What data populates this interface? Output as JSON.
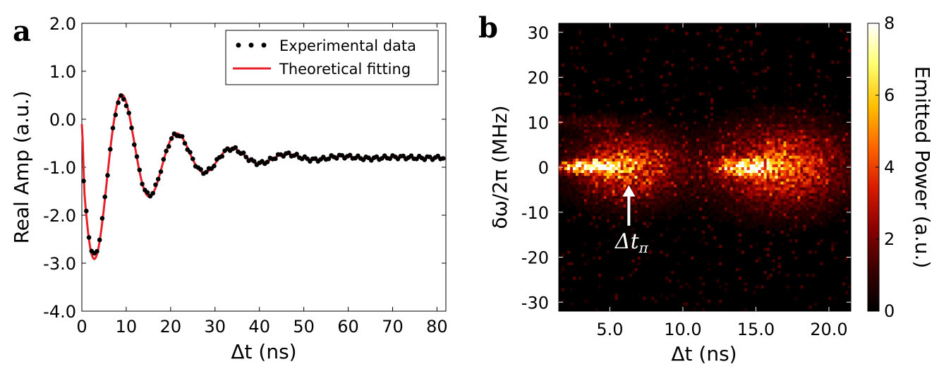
{
  "chart_data": [
    {
      "panel": "a",
      "type": "line",
      "xlabel": "Δt (ns)",
      "ylabel": "Real Amp (a.u.)",
      "xlim": [
        0,
        82
      ],
      "ylim": [
        -4.0,
        2.0
      ],
      "xticks": [
        0,
        10,
        20,
        30,
        40,
        50,
        60,
        70,
        80
      ],
      "xtick_labels": [
        "0",
        "10",
        "20",
        "30",
        "40",
        "50",
        "60",
        "70",
        "80"
      ],
      "yticks": [
        2.0,
        1.0,
        0.0,
        -1.0,
        -2.0,
        -3.0,
        -4.0
      ],
      "ytick_labels": [
        "2.0",
        "1.0",
        "0.0",
        "-1.0",
        "-2.0",
        "-3.0",
        "-4.0"
      ],
      "legend": "top-right",
      "grid": false,
      "series": [
        {
          "name": "Experimental data",
          "style": "dots",
          "color": "#000000",
          "model": {
            "offset": -0.8,
            "amplitude": -2.55,
            "decay_ns": 13,
            "period_ns": 12.4,
            "start_ns": 0.4
          },
          "x": [
            0.4,
            3.3,
            9.5,
            15.7,
            21.9,
            28.1,
            34.3,
            40.5,
            46.7,
            52.9,
            59.1,
            65.3,
            71.5,
            77.7,
            81.5
          ],
          "y": [
            -0.2,
            -3.2,
            1.2,
            -2.2,
            0.35,
            -1.6,
            -0.2,
            -1.3,
            -0.5,
            -1.05,
            -0.65,
            -0.95,
            -0.75,
            -0.9,
            -0.8
          ]
        },
        {
          "name": "Theoretical fitting",
          "style": "line",
          "color": "#e8202a",
          "x": [
            0,
            3.3,
            9.5,
            15.7,
            21.9,
            28.1,
            34.3,
            40.5,
            46.7,
            52.9,
            59.1,
            65.3,
            71.5,
            77.7,
            82
          ],
          "y": [
            -0.1,
            -3.3,
            1.1,
            -2.25,
            0.3,
            -1.65,
            -0.2,
            -1.3,
            -0.45,
            -1.05,
            -0.6,
            -0.95,
            -0.72,
            -0.88,
            -0.8
          ]
        }
      ]
    },
    {
      "panel": "b",
      "type": "heatmap",
      "xlabel": "Δt (ns)",
      "ylabel": "δω/2π (MHz)",
      "xlim": [
        1.5,
        21.5
      ],
      "ylim": [
        -32,
        32
      ],
      "xticks": [
        5,
        10,
        15,
        20
      ],
      "xtick_labels": [
        "5.0",
        "10.0",
        "15.0",
        "20.0"
      ],
      "yticks": [
        30,
        20,
        10,
        0,
        -10,
        -20,
        -30
      ],
      "ytick_labels": [
        "30",
        "20",
        "10",
        "0",
        "-10",
        "-20",
        "-30"
      ],
      "colorbar": {
        "label": "Emitted Power (a.u.)",
        "range": [
          0,
          8
        ],
        "ticks": [
          0,
          2,
          4,
          6,
          8
        ],
        "tick_labels": [
          "0",
          "2",
          "4",
          "6",
          "8"
        ],
        "colormap": [
          "#000000",
          "#3a0000",
          "#8a0000",
          "#d81a00",
          "#ff6600",
          "#ffc000",
          "#ffff70",
          "#ffffff"
        ]
      },
      "blobs": [
        {
          "center_ns": 3.6,
          "center_mhz": 0,
          "peak_power": 8,
          "width_ns": 1.4,
          "width_mhz": 0.9
        },
        {
          "center_ns": 6.2,
          "center_mhz": 0,
          "peak_power": 4.5,
          "width_ns": 2.4,
          "width_mhz": 5
        },
        {
          "center_ns": 14.3,
          "center_mhz": 0,
          "peak_power": 5.5,
          "width_ns": 1.3,
          "width_mhz": 1.2
        },
        {
          "center_ns": 16.8,
          "center_mhz": 0,
          "peak_power": 4.5,
          "width_ns": 3.0,
          "width_mhz": 6
        }
      ],
      "annotation": {
        "text": "Δt",
        "subscript": "π",
        "arrow_x_ns": 6.3,
        "arrow_tip_mhz": -4,
        "arrow_tail_mhz": -13
      }
    }
  ],
  "panel_labels": {
    "a": "a",
    "b": "b"
  }
}
